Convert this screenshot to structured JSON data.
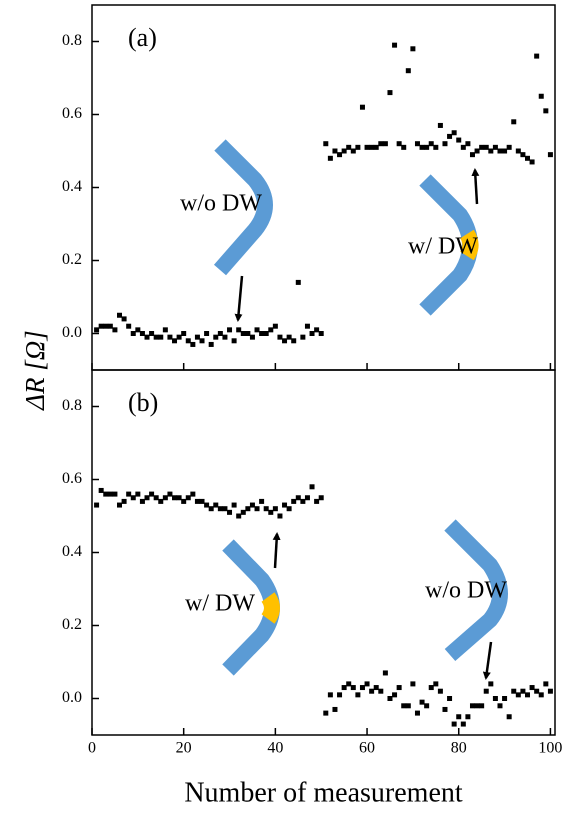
{
  "chart_data": [
    {
      "type": "scatter",
      "ylabel": "ΔR [Ω]",
      "color": "#000000",
      "annotations": [
        "(a)",
        "w/o DW",
        "w/ DW"
      ],
      "xlim": [
        0,
        101
      ],
      "xticks": [
        0,
        20,
        40,
        60,
        80,
        100
      ],
      "ylim": [
        -0.1,
        0.9
      ],
      "yticks": [
        {
          "value": 0,
          "label": "0.0"
        },
        0.2,
        0.4,
        0.6,
        0.8
      ],
      "x": [
        1,
        2,
        3,
        4,
        5,
        6,
        7,
        8,
        9,
        10,
        11,
        12,
        13,
        14,
        15,
        16,
        17,
        18,
        19,
        20,
        21,
        22,
        23,
        24,
        25,
        26,
        27,
        28,
        29,
        30,
        31,
        32,
        33,
        34,
        35,
        36,
        37,
        38,
        39,
        40,
        41,
        42,
        43,
        44,
        45,
        46,
        47,
        48,
        49,
        50,
        51,
        52,
        53,
        54,
        55,
        56,
        57,
        58,
        59,
        60,
        61,
        62,
        63,
        64,
        65,
        66,
        67,
        68,
        69,
        70,
        71,
        72,
        73,
        74,
        75,
        76,
        77,
        78,
        79,
        80,
        81,
        82,
        83,
        84,
        85,
        86,
        87,
        88,
        89,
        90,
        91,
        92,
        93,
        94,
        95,
        96,
        97,
        98,
        99,
        100
      ],
      "values": [
        0.01,
        0.02,
        0.02,
        0.02,
        0.01,
        0.05,
        0.04,
        0.02,
        0.0,
        0.01,
        0.0,
        -0.01,
        0.0,
        -0.01,
        -0.01,
        0.01,
        -0.01,
        -0.02,
        -0.01,
        0.0,
        -0.02,
        -0.03,
        -0.01,
        -0.02,
        0.0,
        -0.03,
        -0.01,
        0.0,
        -0.01,
        0.01,
        -0.02,
        0.01,
        0.0,
        0.0,
        -0.01,
        0.01,
        0.0,
        0.0,
        0.01,
        0.02,
        -0.01,
        -0.02,
        -0.01,
        -0.02,
        0.14,
        -0.01,
        0.02,
        0.0,
        0.01,
        0.0,
        0.52,
        0.48,
        0.5,
        0.49,
        0.5,
        0.51,
        0.5,
        0.51,
        0.62,
        0.51,
        0.51,
        0.51,
        0.52,
        0.52,
        0.66,
        0.79,
        0.52,
        0.51,
        0.72,
        0.78,
        0.52,
        0.51,
        0.51,
        0.52,
        0.51,
        0.57,
        0.52,
        0.54,
        0.55,
        0.53,
        0.51,
        0.52,
        0.49,
        0.5,
        0.51,
        0.51,
        0.5,
        0.51,
        0.5,
        0.5,
        0.51,
        0.58,
        0.5,
        0.49,
        0.48,
        0.47,
        0.76,
        0.65,
        0.61,
        0.49
      ]
    },
    {
      "type": "scatter",
      "xlabel": "Number of measurement",
      "color": "#000000",
      "annotations": [
        "(b)",
        "w/ DW",
        "w/o DW"
      ],
      "xlim": [
        0,
        101
      ],
      "xticks": [
        0,
        20,
        40,
        60,
        80,
        100
      ],
      "ylim": [
        -0.1,
        0.9
      ],
      "yticks": [
        {
          "value": 0,
          "label": "0.0"
        },
        0.2,
        0.4,
        0.6,
        0.8
      ],
      "x": [
        1,
        2,
        3,
        4,
        5,
        6,
        7,
        8,
        9,
        10,
        11,
        12,
        13,
        14,
        15,
        16,
        17,
        18,
        19,
        20,
        21,
        22,
        23,
        24,
        25,
        26,
        27,
        28,
        29,
        30,
        31,
        32,
        33,
        34,
        35,
        36,
        37,
        38,
        39,
        40,
        41,
        42,
        43,
        44,
        45,
        46,
        47,
        48,
        49,
        50,
        51,
        52,
        53,
        54,
        55,
        56,
        57,
        58,
        59,
        60,
        61,
        62,
        63,
        64,
        65,
        66,
        67,
        68,
        69,
        70,
        71,
        72,
        73,
        74,
        75,
        76,
        77,
        78,
        79,
        80,
        81,
        82,
        83,
        84,
        85,
        86,
        87,
        88,
        89,
        90,
        91,
        92,
        93,
        94,
        95,
        96,
        97,
        98,
        99,
        100
      ],
      "values": [
        0.53,
        0.57,
        0.56,
        0.56,
        0.56,
        0.53,
        0.54,
        0.56,
        0.55,
        0.56,
        0.54,
        0.55,
        0.56,
        0.55,
        0.54,
        0.55,
        0.56,
        0.55,
        0.55,
        0.54,
        0.55,
        0.56,
        0.54,
        0.54,
        0.53,
        0.52,
        0.53,
        0.52,
        0.52,
        0.51,
        0.53,
        0.5,
        0.51,
        0.52,
        0.53,
        0.52,
        0.54,
        0.52,
        0.51,
        0.52,
        0.5,
        0.53,
        0.52,
        0.54,
        0.55,
        0.54,
        0.55,
        0.58,
        0.54,
        0.55,
        -0.04,
        0.01,
        -0.03,
        0.01,
        0.03,
        0.04,
        0.03,
        0.01,
        0.03,
        0.04,
        0.02,
        0.03,
        0.02,
        0.07,
        0.0,
        0.01,
        0.03,
        -0.02,
        -0.02,
        0.04,
        -0.04,
        -0.01,
        -0.02,
        0.03,
        0.04,
        0.02,
        -0.03,
        0.0,
        -0.07,
        -0.05,
        -0.07,
        -0.05,
        -0.02,
        -0.02,
        -0.02,
        0.02,
        0.04,
        0.0,
        -0.02,
        0.0,
        -0.05,
        0.02,
        0.01,
        0.02,
        0.01,
        0.03,
        0.02,
        0.01,
        0.04,
        0.02
      ]
    }
  ]
}
